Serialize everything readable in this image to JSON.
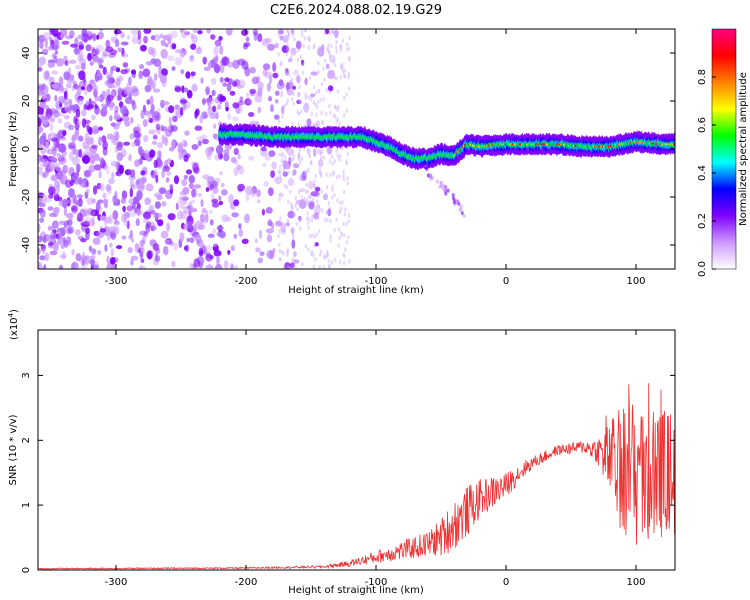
{
  "title": "C2E6.2024.088.02.19.G29",
  "chart_data": [
    {
      "type": "heatmap",
      "name": "spectrogram",
      "xlabel": "Height of straight line (km)",
      "ylabel": "Frequency (Hz)",
      "xlim": [
        -360,
        130
      ],
      "ylim": [
        -50,
        50
      ],
      "xticks": [
        -300,
        -200,
        -100,
        0,
        100
      ],
      "yticks": [
        -40,
        -20,
        0,
        20,
        40
      ],
      "colorbar": {
        "label": "Normalized spectral amplitude",
        "range": [
          0,
          1
        ],
        "ticks": [
          0.0,
          0.2,
          0.4,
          0.6,
          0.8
        ],
        "tick_labels": [
          "0.0",
          "0.2",
          "0.4",
          "0.6",
          "0.8"
        ],
        "colors": [
          "#ffffff",
          "#cc99ff",
          "#7f00ff",
          "#0000ff",
          "#00ffff",
          "#00ff00",
          "#ffff00",
          "#ff8000",
          "#ff0000",
          "#ff0080"
        ]
      },
      "ridge": {
        "x": [
          -220,
          -200,
          -180,
          -160,
          -140,
          -120,
          -110,
          -100,
          -90,
          -80,
          -70,
          -60,
          -50,
          -40,
          -30,
          -20,
          0,
          20,
          40,
          60,
          80,
          100,
          120,
          130
        ],
        "y": [
          6,
          6,
          5,
          5,
          5,
          5,
          5,
          3,
          1,
          -2,
          -4,
          -4,
          -2,
          -3,
          2,
          1,
          2,
          2,
          2,
          1,
          1,
          3,
          2,
          2
        ]
      },
      "noise_region_x": [
        -360,
        -130
      ]
    },
    {
      "type": "line",
      "name": "snr",
      "xlabel": "Height of straight line (km)",
      "ylabel": "SNR (10 * v/v)",
      "y_multiplier": "(x10",
      "y_multiplier_exp": "4",
      "y_multiplier_close": ")",
      "xlim": [
        -360,
        130
      ],
      "ylim": [
        0,
        3.7
      ],
      "xticks": [
        -300,
        -200,
        -100,
        0,
        100
      ],
      "yticks": [
        0,
        1,
        2,
        3
      ],
      "color": "#ee3030",
      "envelope": {
        "x": [
          -360,
          -200,
          -140,
          -120,
          -100,
          -80,
          -60,
          -50,
          -40,
          -30,
          -20,
          -10,
          0,
          10,
          20,
          40,
          60,
          70,
          80,
          90,
          100,
          110,
          120,
          130
        ],
        "mean": [
          0.02,
          0.03,
          0.05,
          0.1,
          0.2,
          0.3,
          0.4,
          0.5,
          0.7,
          0.9,
          1.1,
          1.2,
          1.3,
          1.5,
          1.65,
          1.85,
          1.9,
          1.85,
          1.7,
          1.5,
          1.5,
          1.4,
          1.5,
          1.5
        ],
        "amp": [
          0.01,
          0.01,
          0.02,
          0.05,
          0.1,
          0.15,
          0.2,
          0.3,
          0.4,
          0.4,
          0.3,
          0.25,
          0.2,
          0.15,
          0.1,
          0.08,
          0.1,
          0.2,
          0.6,
          1.1,
          1.2,
          1.1,
          1.0,
          1.0
        ]
      }
    }
  ]
}
